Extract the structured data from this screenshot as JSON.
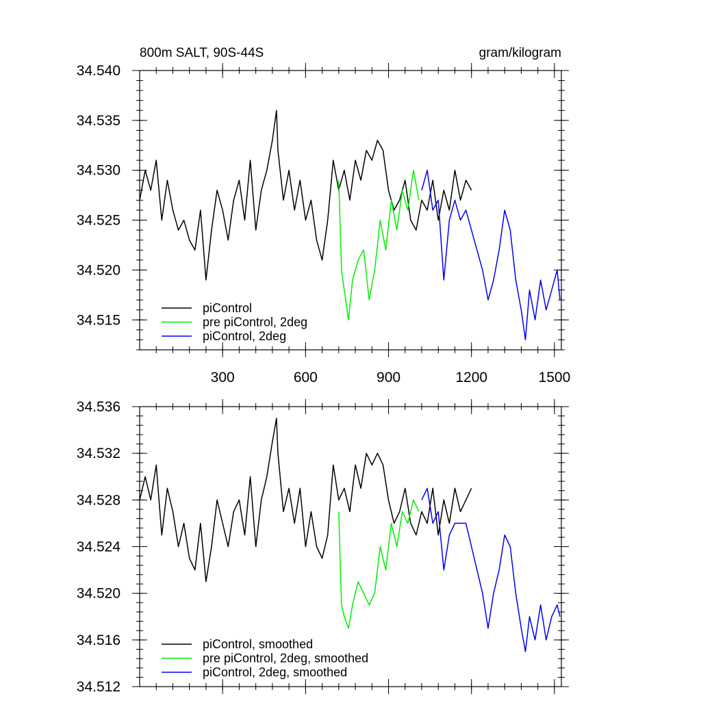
{
  "chart_data": [
    {
      "type": "line",
      "title": "800m SALT, 90S-44S",
      "units": "gram/kilogram",
      "xlim": [
        0,
        1525
      ],
      "ylim": [
        34.512,
        34.54
      ],
      "xticks": [
        300,
        600,
        900,
        1200,
        1500
      ],
      "yticks": [
        34.515,
        34.52,
        34.525,
        34.53,
        34.535,
        34.54
      ],
      "ytick_labels": [
        "34.515",
        "34.520",
        "34.525",
        "34.530",
        "34.535",
        "34.540"
      ],
      "legend": "bottom-left",
      "series": [
        {
          "name": "piControl",
          "color": "#000000",
          "x": [
            0,
            20,
            40,
            60,
            80,
            100,
            120,
            140,
            160,
            180,
            200,
            220,
            240,
            260,
            280,
            300,
            320,
            340,
            360,
            380,
            400,
            420,
            440,
            460,
            480,
            495,
            500,
            520,
            540,
            560,
            580,
            600,
            620,
            640,
            660,
            680,
            700,
            720,
            740,
            760,
            780,
            800,
            820,
            840,
            860,
            880,
            900,
            920,
            940,
            960,
            980,
            1000,
            1020,
            1040,
            1060,
            1080,
            1100,
            1120,
            1140,
            1160,
            1180,
            1200
          ],
          "values": [
            34.527,
            34.53,
            34.528,
            34.531,
            34.525,
            34.529,
            34.526,
            34.524,
            34.525,
            34.523,
            34.522,
            34.526,
            34.519,
            34.524,
            34.528,
            34.526,
            34.523,
            34.527,
            34.529,
            34.525,
            34.531,
            34.524,
            34.528,
            34.53,
            34.533,
            34.536,
            34.532,
            34.527,
            34.53,
            34.526,
            34.529,
            34.525,
            34.527,
            34.523,
            34.521,
            34.525,
            34.531,
            34.528,
            34.53,
            34.527,
            34.531,
            34.529,
            34.532,
            34.531,
            34.533,
            34.532,
            34.528,
            34.526,
            34.527,
            34.529,
            34.525,
            34.524,
            34.527,
            34.526,
            34.529,
            34.525,
            34.528,
            34.526,
            34.53,
            34.527,
            34.529,
            34.528
          ]
        },
        {
          "name": "pre piControl, 2deg",
          "color": "#00ee00",
          "x": [
            720,
            730,
            740,
            755,
            770,
            790,
            810,
            830,
            850,
            870,
            890,
            910,
            930,
            950,
            970,
            990,
            1010
          ],
          "values": [
            34.529,
            34.52,
            34.518,
            34.515,
            34.519,
            34.521,
            34.522,
            34.517,
            34.52,
            34.525,
            34.522,
            34.527,
            34.524,
            34.528,
            34.526,
            34.53,
            34.527
          ]
        },
        {
          "name": "piControl, 2deg",
          "color": "#0000ee",
          "x": [
            1020,
            1040,
            1060,
            1080,
            1100,
            1120,
            1140,
            1160,
            1180,
            1200,
            1220,
            1240,
            1260,
            1280,
            1300,
            1320,
            1340,
            1360,
            1380,
            1395,
            1410,
            1430,
            1450,
            1470,
            1490,
            1510,
            1520
          ],
          "values": [
            34.528,
            34.53,
            34.526,
            34.527,
            34.519,
            34.525,
            34.527,
            34.525,
            34.526,
            34.524,
            34.522,
            34.52,
            34.517,
            34.519,
            34.522,
            34.526,
            34.524,
            34.519,
            34.516,
            34.513,
            34.518,
            34.515,
            34.519,
            34.516,
            34.518,
            34.52,
            34.517
          ]
        }
      ]
    },
    {
      "type": "line",
      "title": "",
      "xlim": [
        0,
        1525
      ],
      "ylim": [
        34.512,
        34.536
      ],
      "xticks": [
        300,
        600,
        900,
        1200,
        1500
      ],
      "yticks": [
        34.512,
        34.516,
        34.52,
        34.524,
        34.528,
        34.532,
        34.536
      ],
      "ytick_labels": [
        "34.512",
        "34.516",
        "34.520",
        "34.524",
        "34.528",
        "34.532",
        "34.536"
      ],
      "legend": "bottom-left",
      "series": [
        {
          "name": "piControl, smoothed",
          "color": "#000000",
          "x": [
            0,
            20,
            40,
            60,
            80,
            100,
            120,
            140,
            160,
            180,
            200,
            220,
            240,
            260,
            280,
            300,
            320,
            340,
            360,
            380,
            400,
            420,
            440,
            460,
            480,
            495,
            500,
            520,
            540,
            560,
            580,
            600,
            620,
            640,
            660,
            680,
            700,
            720,
            740,
            760,
            780,
            800,
            820,
            840,
            860,
            880,
            900,
            920,
            940,
            960,
            980,
            1000,
            1020,
            1040,
            1060,
            1080,
            1100,
            1120,
            1140,
            1160,
            1180,
            1200
          ],
          "values": [
            34.528,
            34.53,
            34.528,
            34.531,
            34.525,
            34.529,
            34.527,
            34.524,
            34.526,
            34.523,
            34.522,
            34.526,
            34.521,
            34.524,
            34.528,
            34.526,
            34.524,
            34.527,
            34.528,
            34.525,
            34.53,
            34.524,
            34.528,
            34.53,
            34.533,
            34.535,
            34.532,
            34.527,
            34.529,
            34.526,
            34.529,
            34.524,
            34.527,
            34.524,
            34.523,
            34.525,
            34.531,
            34.528,
            34.529,
            34.527,
            34.531,
            34.529,
            34.532,
            34.531,
            34.532,
            34.531,
            34.528,
            34.526,
            34.527,
            34.529,
            34.526,
            34.525,
            34.527,
            34.526,
            34.529,
            34.525,
            34.528,
            34.526,
            34.529,
            34.527,
            34.528,
            34.529
          ]
        },
        {
          "name": "pre piControl, 2deg, smoothed",
          "color": "#00ee00",
          "x": [
            720,
            730,
            740,
            755,
            770,
            790,
            810,
            830,
            850,
            870,
            890,
            910,
            930,
            950,
            970,
            990,
            1010
          ],
          "values": [
            34.527,
            34.519,
            34.518,
            34.517,
            34.519,
            34.521,
            34.52,
            34.519,
            34.52,
            34.524,
            34.522,
            34.526,
            34.524,
            34.527,
            34.526,
            34.528,
            34.527
          ]
        },
        {
          "name": "piControl, 2deg, smoothed",
          "color": "#0000ee",
          "x": [
            1020,
            1040,
            1060,
            1080,
            1100,
            1120,
            1140,
            1160,
            1180,
            1200,
            1220,
            1240,
            1260,
            1280,
            1300,
            1320,
            1340,
            1360,
            1380,
            1395,
            1410,
            1430,
            1450,
            1470,
            1490,
            1510,
            1520
          ],
          "values": [
            34.528,
            34.529,
            34.526,
            34.527,
            34.522,
            34.525,
            34.526,
            34.526,
            34.526,
            34.524,
            34.522,
            34.52,
            34.517,
            34.52,
            34.522,
            34.525,
            34.524,
            34.52,
            34.517,
            34.515,
            34.518,
            34.516,
            34.519,
            34.516,
            34.518,
            34.519,
            34.518
          ]
        }
      ]
    }
  ]
}
